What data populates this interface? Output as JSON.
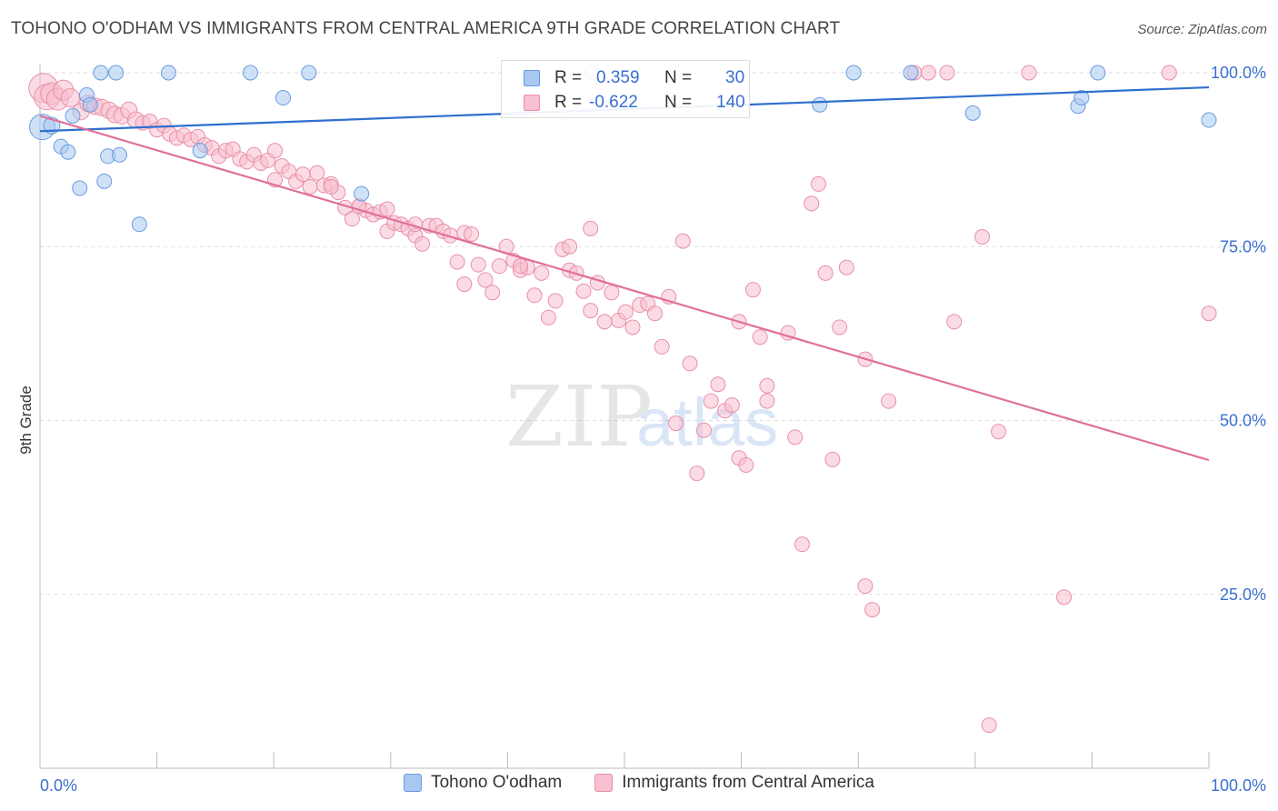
{
  "header": {
    "title": "TOHONO O'ODHAM VS IMMIGRANTS FROM CENTRAL AMERICA 9TH GRADE CORRELATION CHART",
    "source": "Source: ZipAtlas.com"
  },
  "watermark": {
    "text_a": "ZIP",
    "text_b": "atlas"
  },
  "stats": [
    {
      "r_label": "R =",
      "r_value": "0.359",
      "n_label": "N =",
      "n_value": "30",
      "color": "#a8c8f0",
      "border": "#6a9be0"
    },
    {
      "r_label": "R =",
      "r_value": "-0.622",
      "n_label": "N = ",
      "n_value": "140",
      "color": "#f8c0d0",
      "border": "#e890a8"
    }
  ],
  "legend": [
    {
      "label": "Tohono O'odham",
      "color": "#a8c8f0",
      "border": "#6a9be0"
    },
    {
      "label": "Immigrants from Central America",
      "color": "#f8c0d0",
      "border": "#e890a8"
    }
  ],
  "chart_data": {
    "type": "scatter",
    "xlabel": "",
    "ylabel": "9th Grade",
    "xlim": [
      0,
      100
    ],
    "ylim": [
      0,
      103
    ],
    "x_tick_labels": [
      "0.0%",
      "100.0%"
    ],
    "y_ticks": [
      25,
      50,
      75,
      100
    ],
    "y_tick_labels": [
      "25.0%",
      "50.0%",
      "75.0%",
      "100.0%"
    ],
    "grid": "horizontal dashed",
    "series": [
      {
        "name": "Tohono O'odham",
        "color": "#a8c8f0",
        "stroke": "#6a9be0",
        "line_color": "#2f6fce",
        "trend": [
          [
            0,
            91.6
          ],
          [
            100,
            97.9
          ]
        ],
        "points": [
          [
            0.2,
            92.2,
            14
          ],
          [
            1.0,
            92.4,
            9
          ],
          [
            1.8,
            89.4,
            8
          ],
          [
            2.4,
            88.6,
            8
          ],
          [
            2.8,
            93.8,
            8
          ],
          [
            3.4,
            83.4,
            8
          ],
          [
            4.0,
            96.8,
            8
          ],
          [
            4.3,
            95.4,
            8
          ],
          [
            5.2,
            100,
            8
          ],
          [
            5.5,
            84.4,
            8
          ],
          [
            5.8,
            88.0,
            8
          ],
          [
            6.5,
            100,
            8
          ],
          [
            6.8,
            88.2,
            8
          ],
          [
            8.5,
            78.2,
            8
          ],
          [
            11.0,
            100,
            8
          ],
          [
            13.7,
            88.8,
            8
          ],
          [
            18.0,
            100,
            8
          ],
          [
            20.8,
            96.4,
            8
          ],
          [
            23.0,
            100,
            8
          ],
          [
            27.5,
            82.6,
            8
          ],
          [
            47.2,
            100,
            8
          ],
          [
            66.7,
            95.4,
            8
          ],
          [
            69.6,
            100,
            8
          ],
          [
            74.5,
            100,
            8
          ],
          [
            79.8,
            94.2,
            8
          ],
          [
            90.5,
            100,
            8
          ],
          [
            88.8,
            95.2,
            8
          ],
          [
            89.1,
            96.4,
            8
          ],
          [
            100.0,
            93.2,
            8
          ],
          [
            1.3,
            100,
            0
          ]
        ]
      },
      {
        "name": "Immigrants from Central America",
        "color": "#f8c0d0",
        "stroke": "#e890a8",
        "line_color": "#e0709a",
        "trend": [
          [
            0,
            93.8
          ],
          [
            100,
            44.3
          ]
        ],
        "points": [
          [
            0.3,
            97.8,
            16
          ],
          [
            0.6,
            96.5,
            14
          ],
          [
            1.0,
            97.0,
            12
          ],
          [
            1.5,
            96.2,
            12
          ],
          [
            2.0,
            97.5,
            11
          ],
          [
            2.6,
            96.4,
            10
          ],
          [
            3.5,
            94.4,
            9
          ],
          [
            4.1,
            95.6,
            9
          ],
          [
            4.7,
            95.2,
            9
          ],
          [
            5.3,
            95.0,
            9
          ],
          [
            5.9,
            94.6,
            9
          ],
          [
            6.4,
            94.0,
            9
          ],
          [
            7.0,
            93.8,
            9
          ],
          [
            7.6,
            94.6,
            9
          ],
          [
            8.2,
            93.2,
            9
          ],
          [
            8.8,
            92.8,
            8
          ],
          [
            9.4,
            93.0,
            8
          ],
          [
            10.0,
            91.8,
            8
          ],
          [
            10.6,
            92.4,
            8
          ],
          [
            11.1,
            91.2,
            8
          ],
          [
            11.7,
            90.6,
            8
          ],
          [
            12.3,
            91.0,
            8
          ],
          [
            12.9,
            90.4,
            8
          ],
          [
            13.5,
            90.8,
            8
          ],
          [
            14.1,
            89.6,
            8
          ],
          [
            14.7,
            89.2,
            8
          ],
          [
            15.3,
            88.0,
            8
          ],
          [
            15.9,
            88.8,
            8
          ],
          [
            16.5,
            89.0,
            8
          ],
          [
            17.1,
            87.6,
            8
          ],
          [
            17.7,
            87.2,
            8
          ],
          [
            18.3,
            88.2,
            8
          ],
          [
            18.9,
            87.0,
            8
          ],
          [
            19.5,
            87.4,
            8
          ],
          [
            20.1,
            84.6,
            8
          ],
          [
            20.7,
            86.6,
            8
          ],
          [
            21.3,
            85.8,
            8
          ],
          [
            21.9,
            84.4,
            8
          ],
          [
            22.5,
            85.4,
            8
          ],
          [
            23.1,
            83.6,
            8
          ],
          [
            23.7,
            85.6,
            8
          ],
          [
            24.3,
            83.8,
            8
          ],
          [
            24.9,
            84.0,
            8
          ],
          [
            25.5,
            82.8,
            8
          ],
          [
            26.1,
            80.6,
            8
          ],
          [
            26.7,
            79.0,
            8
          ],
          [
            27.3,
            80.8,
            8
          ],
          [
            27.9,
            80.2,
            8
          ],
          [
            28.5,
            79.6,
            8
          ],
          [
            29.1,
            80.0,
            8
          ],
          [
            29.7,
            77.2,
            8
          ],
          [
            30.3,
            78.4,
            8
          ],
          [
            30.9,
            78.2,
            8
          ],
          [
            31.5,
            77.6,
            8
          ],
          [
            32.1,
            76.6,
            8
          ],
          [
            32.7,
            75.4,
            8
          ],
          [
            33.3,
            78.0,
            8
          ],
          [
            33.9,
            78.0,
            8
          ],
          [
            34.5,
            77.2,
            8
          ],
          [
            35.1,
            76.6,
            8
          ],
          [
            35.7,
            72.8,
            8
          ],
          [
            36.3,
            77.0,
            8
          ],
          [
            36.9,
            76.8,
            8
          ],
          [
            37.5,
            72.4,
            8
          ],
          [
            38.1,
            70.2,
            8
          ],
          [
            38.7,
            68.4,
            8
          ],
          [
            39.3,
            72.2,
            8
          ],
          [
            39.9,
            75.0,
            8
          ],
          [
            40.5,
            73.0,
            8
          ],
          [
            41.1,
            71.6,
            8
          ],
          [
            41.7,
            72.0,
            8
          ],
          [
            42.3,
            68.0,
            8
          ],
          [
            42.9,
            71.2,
            8
          ],
          [
            43.5,
            64.8,
            8
          ],
          [
            44.1,
            67.2,
            8
          ],
          [
            44.7,
            74.6,
            8
          ],
          [
            45.3,
            71.6,
            8
          ],
          [
            45.3,
            75.0,
            8
          ],
          [
            45.9,
            71.2,
            8
          ],
          [
            46.5,
            68.6,
            8
          ],
          [
            47.1,
            77.6,
            8
          ],
          [
            47.7,
            69.8,
            8
          ],
          [
            48.3,
            64.2,
            8
          ],
          [
            48.9,
            68.4,
            8
          ],
          [
            49.5,
            64.4,
            8
          ],
          [
            50.1,
            65.6,
            8
          ],
          [
            50.7,
            63.4,
            8
          ],
          [
            51.3,
            66.6,
            8
          ],
          [
            52.0,
            66.8,
            8
          ],
          [
            52.6,
            65.4,
            8
          ],
          [
            53.2,
            60.6,
            8
          ],
          [
            53.8,
            67.8,
            8
          ],
          [
            54.4,
            49.6,
            8
          ],
          [
            55.0,
            75.8,
            8
          ],
          [
            55.6,
            58.2,
            8
          ],
          [
            56.2,
            42.4,
            8
          ],
          [
            56.8,
            48.6,
            8
          ],
          [
            57.4,
            52.8,
            8
          ],
          [
            58.0,
            55.2,
            8
          ],
          [
            58.6,
            51.4,
            8
          ],
          [
            59.2,
            52.2,
            8
          ],
          [
            59.8,
            64.2,
            8
          ],
          [
            59.8,
            44.6,
            8
          ],
          [
            60.4,
            43.6,
            8
          ],
          [
            61.0,
            68.8,
            8
          ],
          [
            61.6,
            62.0,
            8
          ],
          [
            62.2,
            52.8,
            8
          ],
          [
            62.2,
            55.0,
            8
          ],
          [
            64.0,
            62.6,
            8
          ],
          [
            64.6,
            47.6,
            8
          ],
          [
            65.2,
            32.2,
            8
          ],
          [
            66.0,
            81.2,
            8
          ],
          [
            66.6,
            84.0,
            8
          ],
          [
            67.2,
            71.2,
            8
          ],
          [
            67.8,
            44.4,
            8
          ],
          [
            68.4,
            63.4,
            8
          ],
          [
            69.0,
            72.0,
            8
          ],
          [
            70.6,
            58.8,
            8
          ],
          [
            70.6,
            26.2,
            8
          ],
          [
            71.2,
            22.8,
            8
          ],
          [
            72.6,
            52.8,
            8
          ],
          [
            74.8,
            100,
            8
          ],
          [
            76.0,
            100,
            8
          ],
          [
            77.6,
            100,
            8
          ],
          [
            78.2,
            64.2,
            8
          ],
          [
            80.6,
            76.4,
            8
          ],
          [
            81.2,
            6.2,
            8
          ],
          [
            82.0,
            48.4,
            8
          ],
          [
            87.6,
            24.6,
            8
          ],
          [
            84.6,
            100,
            8
          ],
          [
            96.6,
            100,
            8
          ],
          [
            100.0,
            65.4,
            8
          ],
          [
            32.1,
            78.2,
            8
          ],
          [
            27.3,
            80.8,
            8
          ],
          [
            47.1,
            65.8,
            8
          ],
          [
            41.1,
            72.2,
            8
          ],
          [
            36.3,
            69.6,
            8
          ],
          [
            29.7,
            80.4,
            8
          ],
          [
            24.9,
            83.6,
            8
          ],
          [
            20.1,
            88.8,
            8
          ]
        ]
      }
    ]
  }
}
